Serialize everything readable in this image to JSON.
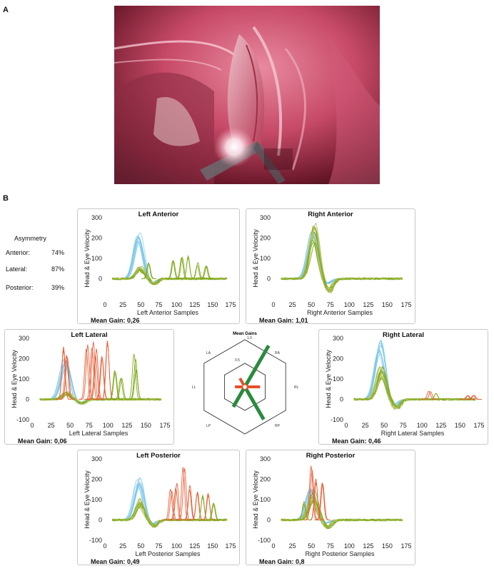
{
  "panel_labels": {
    "a": "A",
    "b": "B"
  },
  "asymmetry": {
    "title": "Asymmetry",
    "rows": [
      {
        "label": "Anterior:",
        "value": "74%"
      },
      {
        "label": "Lateral:",
        "value": "87%"
      },
      {
        "label": "Posterior:",
        "value": "39%"
      }
    ]
  },
  "colors": {
    "head": "#7ec8ea",
    "eye": "#7faa1c",
    "eye_light": "#b9c46a",
    "saccade": "#e8603a",
    "gain_bar_main": "#2a8a3c",
    "gain_bar_sub": "#e5502a"
  },
  "chart_data": [
    {
      "id": "left-anterior",
      "type": "line",
      "title": "Left Anterior",
      "xlabel": "Left Anterior Samples",
      "ylabel": "Head & Eye Velocity",
      "xlim": [
        0,
        175
      ],
      "ylim": [
        -100,
        300
      ],
      "xticks": [
        0,
        25,
        50,
        75,
        100,
        125,
        150,
        175
      ],
      "yticks": [
        0,
        100,
        200,
        300
      ],
      "ytick_labels": [
        "0",
        "100",
        "200",
        "300"
      ],
      "gain_text": "Mean Gain: 0,26",
      "head_peak": 220,
      "head_center": 47,
      "eye_peak": 55,
      "saccades": [
        {
          "x": 60,
          "y": 80,
          "color": "eye"
        },
        {
          "x": 95,
          "y": 95,
          "color": "eye"
        },
        {
          "x": 108,
          "y": 120,
          "color": "eye"
        },
        {
          "x": 115,
          "y": 110,
          "color": "eye"
        },
        {
          "x": 130,
          "y": 75,
          "color": "eye"
        },
        {
          "x": 142,
          "y": 60,
          "color": "eye"
        }
      ]
    },
    {
      "id": "right-anterior",
      "type": "line",
      "title": "Right Anterior",
      "xlabel": "Right Anterior Samples",
      "ylabel": "Head & Eye Velocity",
      "xlim": [
        0,
        175
      ],
      "ylim": [
        -100,
        300
      ],
      "xticks": [
        0,
        25,
        50,
        75,
        100,
        125,
        150,
        175
      ],
      "yticks": [
        0,
        100,
        200,
        300
      ],
      "ytick_labels": [
        "0",
        "100",
        "200",
        "300"
      ],
      "gain_text": "Mean Gain: 1,01",
      "head_peak": 230,
      "head_center": 52,
      "eye_peak": 240,
      "saccades": []
    },
    {
      "id": "left-lateral",
      "type": "line",
      "title": "Left Lateral",
      "xlabel": "Left Lateral Samples",
      "ylabel": "Head & Eye Velocity",
      "xlim": [
        0,
        175
      ],
      "ylim": [
        -100,
        300
      ],
      "xticks": [
        0,
        25,
        50,
        75,
        100,
        125,
        150,
        175
      ],
      "yticks": [
        -100,
        0,
        100,
        200,
        300
      ],
      "ytick_labels": [
        "-100",
        "0",
        "100",
        "200",
        "300"
      ],
      "gain_text": "Mean Gain: 0,06",
      "head_peak": 190,
      "head_center": 44,
      "eye_peak": 30,
      "saccades": [
        {
          "x": 40,
          "y": 260,
          "color": "saccade"
        },
        {
          "x": 46,
          "y": 240,
          "color": "saccade"
        },
        {
          "x": 72,
          "y": 270,
          "color": "saccade"
        },
        {
          "x": 80,
          "y": 280,
          "color": "saccade"
        },
        {
          "x": 85,
          "y": 250,
          "color": "saccade"
        },
        {
          "x": 92,
          "y": 230,
          "color": "saccade"
        },
        {
          "x": 100,
          "y": 280,
          "color": "saccade"
        },
        {
          "x": 110,
          "y": 160,
          "color": "eye"
        },
        {
          "x": 118,
          "y": 100,
          "color": "eye"
        },
        {
          "x": 135,
          "y": 220,
          "color": "eye"
        },
        {
          "x": 138,
          "y": 150,
          "color": "eye"
        }
      ]
    },
    {
      "id": "right-lateral",
      "type": "line",
      "title": "Right Lateral",
      "xlabel": "Right Lateral Samples",
      "ylabel": "Head & Eye Velocity",
      "xlim": [
        0,
        175
      ],
      "ylim": [
        -100,
        300
      ],
      "xticks": [
        0,
        25,
        50,
        75,
        100,
        125,
        150,
        175
      ],
      "yticks": [
        -100,
        0,
        100,
        200,
        300
      ],
      "ytick_labels": [
        "-100",
        "0",
        "100",
        "200",
        "300"
      ],
      "gain_text": "Mean Gain: 0,46",
      "head_peak": 280,
      "head_center": 44,
      "eye_peak": 140,
      "saccades": [
        {
          "x": 110,
          "y": 40,
          "color": "saccade"
        },
        {
          "x": 118,
          "y": 30,
          "color": "eye"
        },
        {
          "x": 160,
          "y": 20,
          "color": "saccade"
        },
        {
          "x": 168,
          "y": 20,
          "color": "saccade"
        }
      ]
    },
    {
      "id": "left-posterior",
      "type": "line",
      "title": "Left Posterior",
      "xlabel": "Left Posterior Samples",
      "ylabel": "Head & Eye Velocity",
      "xlim": [
        0,
        175
      ],
      "ylim": [
        -100,
        300
      ],
      "xticks": [
        0,
        25,
        50,
        75,
        100,
        125,
        150,
        175
      ],
      "yticks": [
        -100,
        0,
        100,
        200,
        300
      ],
      "ytick_labels": [
        "-100",
        "0",
        "100",
        "200",
        "300"
      ],
      "gain_text": "Mean Gain: 0,49",
      "head_peak": 200,
      "head_center": 47,
      "eye_peak": 90,
      "saccades": [
        {
          "x": 92,
          "y": 150,
          "color": "saccade"
        },
        {
          "x": 100,
          "y": 180,
          "color": "saccade"
        },
        {
          "x": 110,
          "y": 270,
          "color": "saccade"
        },
        {
          "x": 118,
          "y": 170,
          "color": "saccade"
        },
        {
          "x": 128,
          "y": 150,
          "color": "saccade"
        },
        {
          "x": 135,
          "y": 120,
          "color": "eye"
        },
        {
          "x": 145,
          "y": 130,
          "color": "saccade"
        },
        {
          "x": 152,
          "y": 90,
          "color": "eye"
        }
      ]
    },
    {
      "id": "right-posterior",
      "type": "line",
      "title": "Right Posterior",
      "xlabel": "Right Posterior Samples",
      "ylabel": "Head & Eye Velocity",
      "xlim": [
        0,
        175
      ],
      "ylim": [
        -100,
        300
      ],
      "xticks": [
        0,
        25,
        50,
        75,
        100,
        125,
        150,
        175
      ],
      "yticks": [
        -100,
        0,
        100,
        200,
        300
      ],
      "ytick_labels": [
        "-100",
        "0",
        "100",
        "200",
        "300"
      ],
      "gain_text": "Mean Gain: 0,8",
      "head_peak": 150,
      "head_center": 50,
      "eye_peak": 130,
      "saccades": [
        {
          "x": 50,
          "y": 260,
          "color": "saccade"
        },
        {
          "x": 56,
          "y": 210,
          "color": "saccade"
        },
        {
          "x": 65,
          "y": 180,
          "color": "saccade"
        },
        {
          "x": 40,
          "y": 90,
          "color": "eye"
        }
      ]
    }
  ],
  "mean_gains": {
    "title": "Mean Gains",
    "scale_labels": [
      "1.0",
      "0.5"
    ],
    "axis_labels": [
      "LA",
      "RA",
      "LL",
      "RL",
      "LP",
      "RP"
    ],
    "bars": [
      {
        "canal": "RA",
        "value": 1.01,
        "color": "gain_bar_main"
      },
      {
        "canal": "LP",
        "value": 0.49,
        "color": "gain_bar_main"
      },
      {
        "canal": "LA",
        "value": 0.26,
        "color": "gain_bar_sub"
      },
      {
        "canal": "RP",
        "value": 0.8,
        "color": "gain_bar_main"
      },
      {
        "canal": "LL",
        "value": 0.06,
        "color": "gain_bar_sub"
      },
      {
        "canal": "RL",
        "value": 0.46,
        "color": "gain_bar_sub"
      }
    ]
  }
}
